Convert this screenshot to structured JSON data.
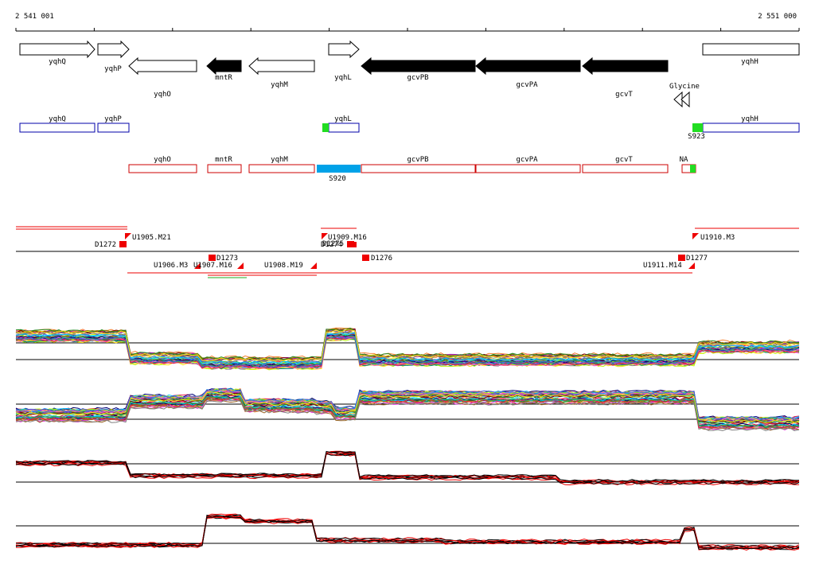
{
  "axis": {
    "start_label": "2 541 001",
    "end_label": "2 551 000"
  },
  "genes": [
    {
      "name": "yqhQ",
      "dir": "+",
      "fill": "white"
    },
    {
      "name": "yqhP",
      "dir": "+",
      "fill": "white"
    },
    {
      "name": "yqhO",
      "dir": "-",
      "fill": "white"
    },
    {
      "name": "mntR",
      "dir": "-",
      "fill": "black"
    },
    {
      "name": "yqhM",
      "dir": "-",
      "fill": "white"
    },
    {
      "name": "yqhL",
      "dir": "+",
      "fill": "white"
    },
    {
      "name": "gcvPB",
      "dir": "-",
      "fill": "black"
    },
    {
      "name": "gcvPA",
      "dir": "-",
      "fill": "black"
    },
    {
      "name": "gcvT",
      "dir": "-",
      "fill": "black"
    },
    {
      "name": "yqhH",
      "dir": "+",
      "fill": "white"
    }
  ],
  "riboswitch": {
    "label": "Glycine"
  },
  "forward_transcripts": [
    "yqhQ",
    "yqhP",
    "yqhL",
    "yqhH"
  ],
  "reverse_transcripts": [
    "yqhO",
    "mntR",
    "yqhM",
    "gcvPB",
    "gcvPA",
    "gcvT",
    "NA"
  ],
  "segments": {
    "s920": "S920",
    "s923": "S923"
  },
  "breakpoints_up": [
    {
      "label": "U1905.M21"
    },
    {
      "label": "U1909.M16"
    },
    {
      "label": "U1910.M3"
    }
  ],
  "breakpoints_down": [
    {
      "label": "U1906.M3"
    },
    {
      "label": "U1907.M16"
    },
    {
      "label": "U1908.M19"
    },
    {
      "label": "U1911.M14"
    }
  ],
  "downshifts": [
    {
      "label": "D1272"
    },
    {
      "label": "D1273"
    },
    {
      "label": "D1274"
    },
    {
      "label": "D1275"
    },
    {
      "label": "D1276"
    },
    {
      "label": "D1277"
    }
  ],
  "colors": {
    "forward_box": "#0000aa",
    "reverse_box": "#cc0000",
    "segment_blue": "#00a2e8",
    "segment_green": "#22dd22",
    "breakpoint_red": "#ee0000",
    "profile_red": "#ee0000",
    "profile_black": "#000000"
  },
  "profiles": [
    {
      "name": "forward-strand-expression",
      "kind": "multicolor"
    },
    {
      "name": "reverse-strand-expression",
      "kind": "multicolor"
    },
    {
      "name": "forward-strand-summary",
      "kind": "red-black"
    },
    {
      "name": "reverse-strand-summary",
      "kind": "red-black"
    }
  ]
}
